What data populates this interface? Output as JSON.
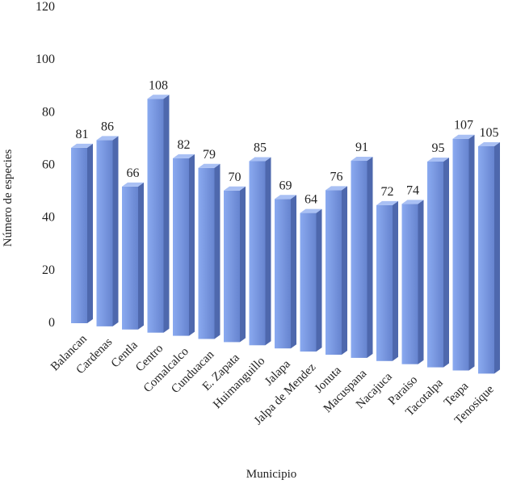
{
  "chart_data": {
    "type": "bar",
    "style": "3d-column",
    "title": "",
    "xlabel": "Municipio",
    "ylabel": "Número de especies",
    "ylim": [
      0,
      120
    ],
    "yticks": [
      0,
      20,
      40,
      60,
      80,
      100,
      120
    ],
    "grid": false,
    "legend": "none",
    "bar_color": "#7f9fe2",
    "categories": [
      "Balancan",
      "Cardenas",
      "Centla",
      "Centro",
      "Comalcalco",
      "Cunduacan",
      "E. Zapata",
      "Huimanguillo",
      "Jalapa",
      "Jalpa de Mendez",
      "Jonuta",
      "Macuspana",
      "Nacajuca",
      "Paraiso",
      "Tacotalpa",
      "Teapa",
      "Tenosique"
    ],
    "values": [
      81,
      86,
      66,
      108,
      82,
      79,
      70,
      85,
      69,
      64,
      76,
      91,
      72,
      74,
      95,
      107,
      105
    ]
  }
}
